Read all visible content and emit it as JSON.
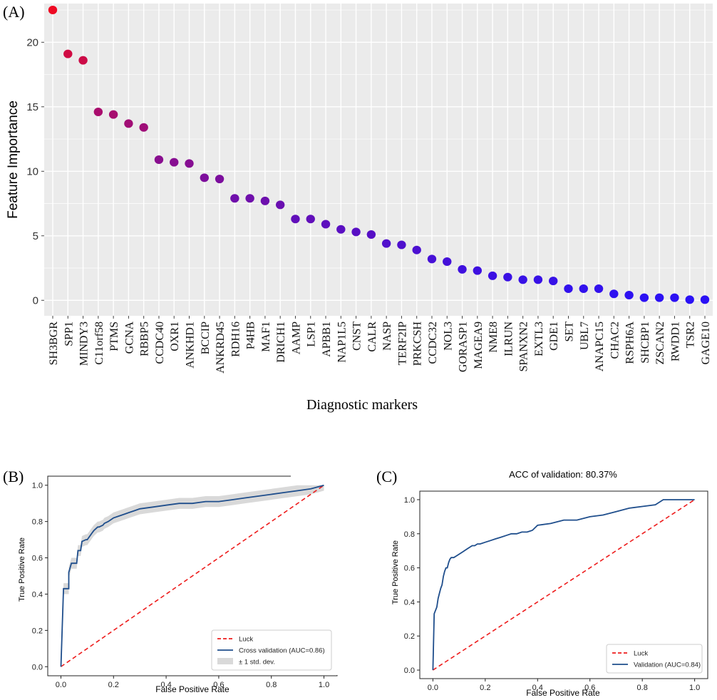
{
  "panels": {
    "A": {
      "label": "(A)"
    },
    "B": {
      "label": "(B)"
    },
    "C": {
      "label": "(C)"
    }
  },
  "chart_data": [
    {
      "type": "scatter",
      "xlabel": "Diagnostic markers",
      "ylabel": "Feature Importance",
      "ylim": [
        -1.2,
        23
      ],
      "yticks": [
        0,
        5,
        10,
        15,
        20
      ],
      "grid": true,
      "background": "#ebebeb",
      "color_high": "#ee0a23",
      "color_low": "#2a11f5",
      "categories": [
        "SH3BGR",
        "SPP1",
        "MINDY3",
        "C11orf58",
        "PTMS",
        "GCNA",
        "RBBP5",
        "CCDC40",
        "OXR1",
        "ANKHD1",
        "BCCIP",
        "ANKRD45",
        "RDH16",
        "P4HB",
        "MAF1",
        "DRICH1",
        "AAMP",
        "LSP1",
        "APBB1",
        "NAP1L5",
        "CNST",
        "CALR",
        "NASP",
        "TERF2IP",
        "PRKCSH",
        "CCDC32",
        "NOL3",
        "GORASP1",
        "MAGEA9",
        "NME8",
        "ILRUN",
        "SPANXN2",
        "EXTL3",
        "GDE1",
        "SET",
        "UBL7",
        "ANAPC15",
        "CHAC2",
        "RSPH6A",
        "SHCBP1",
        "ZSCAN2",
        "RWDD1",
        "TSR2",
        "GAGE10"
      ],
      "values": [
        22.5,
        19.1,
        18.6,
        14.6,
        14.4,
        13.7,
        13.4,
        10.9,
        10.7,
        10.6,
        9.5,
        9.4,
        7.9,
        7.9,
        7.7,
        7.4,
        6.3,
        6.3,
        5.9,
        5.5,
        5.3,
        5.1,
        4.4,
        4.3,
        3.9,
        3.2,
        3.0,
        2.4,
        2.3,
        1.9,
        1.8,
        1.6,
        1.6,
        1.5,
        0.9,
        0.9,
        0.9,
        0.5,
        0.4,
        0.2,
        0.2,
        0.2,
        0.05,
        0.05
      ]
    },
    {
      "type": "line",
      "xlabel": "False Positive Rate",
      "ylabel": "True Positive Rate",
      "xlim": [
        -0.05,
        1.05
      ],
      "ylim": [
        -0.05,
        1.05
      ],
      "xticks": [
        "0.0",
        "0.2",
        "0.4",
        "0.6",
        "0.8",
        "1.0"
      ],
      "yticks": [
        "0.0",
        "0.2",
        "0.4",
        "0.6",
        "0.8",
        "1.0"
      ],
      "legend_position": "bottom-right",
      "series": [
        {
          "name": "Luck",
          "style": "dashed",
          "color": "#ee1c1c",
          "x": [
            0,
            1
          ],
          "y": [
            0,
            1
          ]
        },
        {
          "name": "Cross validation (AUC=0.86)",
          "color": "#1f4e8c",
          "x": [
            0,
            0.01,
            0.01,
            0.03,
            0.03,
            0.04,
            0.045,
            0.06,
            0.065,
            0.075,
            0.08,
            0.095,
            0.1,
            0.12,
            0.125,
            0.14,
            0.145,
            0.16,
            0.165,
            0.18,
            0.2,
            0.22,
            0.24,
            0.26,
            0.28,
            0.3,
            0.35,
            0.4,
            0.45,
            0.5,
            0.55,
            0.6,
            0.65,
            0.7,
            0.75,
            0.8,
            0.85,
            0.9,
            0.95,
            1.0
          ],
          "y": [
            0,
            0.43,
            0.43,
            0.43,
            0.52,
            0.57,
            0.57,
            0.57,
            0.64,
            0.64,
            0.69,
            0.7,
            0.7,
            0.74,
            0.75,
            0.77,
            0.77,
            0.78,
            0.79,
            0.8,
            0.82,
            0.83,
            0.84,
            0.85,
            0.86,
            0.87,
            0.88,
            0.89,
            0.9,
            0.9,
            0.91,
            0.91,
            0.92,
            0.93,
            0.94,
            0.95,
            0.96,
            0.97,
            0.98,
            1.0
          ]
        },
        {
          "name": "± 1 std. dev.",
          "style": "band",
          "color": "#d9d9d9",
          "std": 0.03
        }
      ]
    },
    {
      "type": "line",
      "title": "ACC of validation: 80.37%",
      "xlabel": "False Positive Rate",
      "ylabel": "True Positive Rate",
      "xlim": [
        -0.05,
        1.05
      ],
      "ylim": [
        -0.05,
        1.05
      ],
      "xticks": [
        "0.0",
        "0.2",
        "0.4",
        "0.6",
        "0.8",
        "1.0"
      ],
      "yticks": [
        "0.0",
        "0.2",
        "0.4",
        "0.6",
        "0.8",
        "1.0"
      ],
      "legend_position": "bottom-right",
      "series": [
        {
          "name": "Luck",
          "style": "dashed",
          "color": "#ee1c1c",
          "x": [
            0,
            1
          ],
          "y": [
            0,
            1
          ]
        },
        {
          "name": "Validation (AUC=0.84)",
          "color": "#1f4e8c",
          "x": [
            0,
            0.005,
            0.01,
            0.015,
            0.02,
            0.025,
            0.03,
            0.035,
            0.04,
            0.045,
            0.05,
            0.055,
            0.06,
            0.065,
            0.07,
            0.075,
            0.08,
            0.09,
            0.1,
            0.11,
            0.12,
            0.13,
            0.14,
            0.15,
            0.16,
            0.17,
            0.18,
            0.2,
            0.22,
            0.24,
            0.26,
            0.28,
            0.3,
            0.32,
            0.34,
            0.36,
            0.38,
            0.4,
            0.45,
            0.5,
            0.55,
            0.6,
            0.65,
            0.7,
            0.75,
            0.8,
            0.85,
            0.88,
            0.9,
            0.95,
            1.0
          ],
          "y": [
            0,
            0.33,
            0.35,
            0.37,
            0.42,
            0.45,
            0.48,
            0.5,
            0.55,
            0.58,
            0.6,
            0.6,
            0.63,
            0.65,
            0.66,
            0.66,
            0.66,
            0.67,
            0.68,
            0.69,
            0.7,
            0.71,
            0.72,
            0.73,
            0.73,
            0.74,
            0.74,
            0.75,
            0.76,
            0.77,
            0.78,
            0.79,
            0.8,
            0.8,
            0.81,
            0.81,
            0.82,
            0.85,
            0.86,
            0.88,
            0.88,
            0.9,
            0.91,
            0.93,
            0.95,
            0.96,
            0.97,
            1.0,
            1.0,
            1.0,
            1.0
          ]
        }
      ]
    }
  ]
}
